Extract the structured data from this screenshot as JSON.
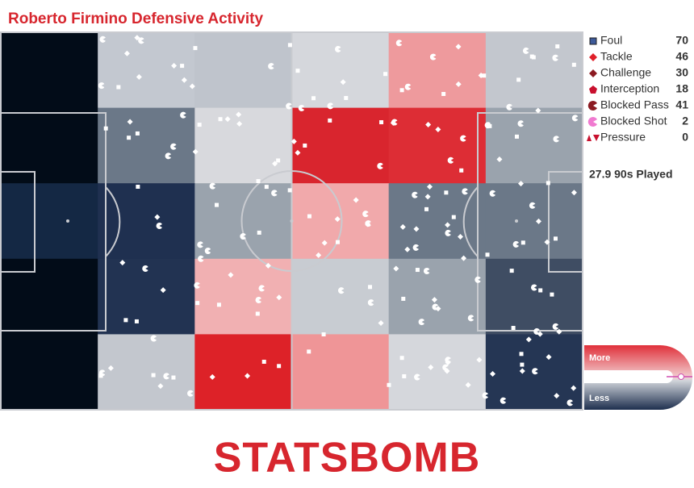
{
  "header": {
    "title": "Roberto Firmino Defensive Activity"
  },
  "legend": [
    {
      "label": "Foul",
      "count": 70
    },
    {
      "label": "Tackle",
      "count": 46
    },
    {
      "label": "Challenge",
      "count": 30
    },
    {
      "label": "Interception",
      "count": 18
    },
    {
      "label": "Blocked Pass",
      "count": 41
    },
    {
      "label": "Blocked Shot",
      "count": 2
    },
    {
      "label": "Pressure",
      "count": 0
    }
  ],
  "played": "27.9 90s Played",
  "scale": {
    "high": "More",
    "low": "Less"
  },
  "logo": "STATSBOMB"
}
